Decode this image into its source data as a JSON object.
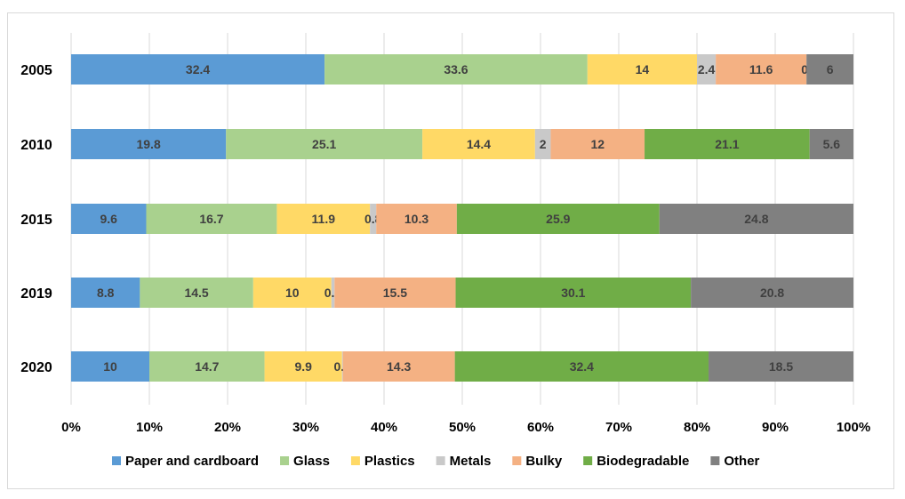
{
  "chart_data": {
    "type": "bar",
    "orientation": "horizontal",
    "stacked": "percent",
    "title": "",
    "xlabel": "",
    "ylabel": "",
    "xlim": [
      0,
      100
    ],
    "grid": true,
    "legend_position": "bottom",
    "categories": [
      "2005",
      "2010",
      "2015",
      "2019",
      "2020"
    ],
    "x_ticks": [
      "0%",
      "10%",
      "20%",
      "30%",
      "40%",
      "50%",
      "60%",
      "70%",
      "80%",
      "90%",
      "100%"
    ],
    "series": [
      {
        "name": "Paper and cardboard",
        "color": "#5b9bd5",
        "values": [
          32.4,
          19.8,
          9.6,
          8.8,
          10
        ]
      },
      {
        "name": "Glass",
        "color": "#a9d18e",
        "values": [
          33.6,
          25.1,
          16.7,
          14.5,
          14.7
        ]
      },
      {
        "name": "Plastics",
        "color": "#ffd966",
        "values": [
          14,
          14.4,
          11.9,
          10,
          9.9
        ]
      },
      {
        "name": "Metals",
        "color": "#c9c9c9",
        "values": [
          2.4,
          2,
          0.8,
          0.4,
          0.1
        ]
      },
      {
        "name": "Bulky",
        "color": "#f4b183",
        "values": [
          11.6,
          12,
          10.3,
          15.5,
          14.3
        ]
      },
      {
        "name": "Biodegradable",
        "color": "#70ad47",
        "values": [
          0,
          21.1,
          25.9,
          30.1,
          32.4
        ]
      },
      {
        "name": "Other",
        "color": "#808080",
        "values": [
          6,
          5.6,
          24.8,
          20.8,
          18.5
        ]
      }
    ]
  }
}
